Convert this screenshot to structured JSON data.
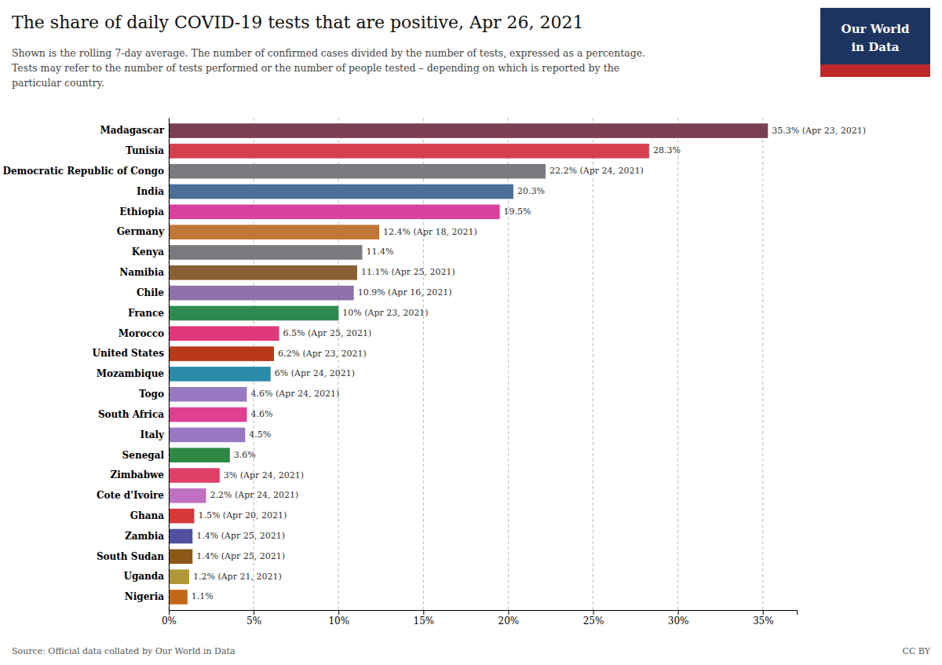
{
  "chart_data": {
    "type": "bar",
    "orientation": "horizontal",
    "title": "The share of daily COVID‑19 tests that are positive, Apr 26, 2021",
    "subtitle": [
      "Shown is the rolling 7-day average. The number of confirmed cases divided by the number of tests, expressed as a percentage.",
      "Tests may refer to the number of tests performed or the number of people tested – depending on which is reported by the",
      "particular country."
    ],
    "categories": [
      "Madagascar",
      "Tunisia",
      "Democratic Republic of Congo",
      "India",
      "Ethiopia",
      "Germany",
      "Kenya",
      "Namibia",
      "Chile",
      "France",
      "Morocco",
      "United States",
      "Mozambique",
      "Togo",
      "South Africa",
      "Italy",
      "Senegal",
      "Zimbabwe",
      "Cote d'Ivoire",
      "Ghana",
      "Zambia",
      "South Sudan",
      "Uganda",
      "Nigeria"
    ],
    "values": [
      35.3,
      28.3,
      22.2,
      20.3,
      19.5,
      12.4,
      11.4,
      11.1,
      10.9,
      10.0,
      6.5,
      6.2,
      6.0,
      4.6,
      4.6,
      4.5,
      3.6,
      3.0,
      2.2,
      1.5,
      1.4,
      1.4,
      1.2,
      1.1
    ],
    "data_labels": true,
    "value_labels": [
      "35.3% (Apr 23, 2021)",
      "28.3%",
      "22.2% (Apr 24, 2021)",
      "20.3%",
      "19.5%",
      "12.4% (Apr 18, 2021)",
      "11.4%",
      "11.1% (Apr 25, 2021)",
      "10.9% (Apr 16, 2021)",
      "10% (Apr 23, 2021)",
      "6.5% (Apr 25, 2021)",
      "6.2% (Apr 23, 2021)",
      "6% (Apr 24, 2021)",
      "4.6% (Apr 24, 2021)",
      "4.6%",
      "4.5%",
      "3.6%",
      "3% (Apr 24, 2021)",
      "2.2% (Apr 24, 2021)",
      "1.5% (Apr 20, 2021)",
      "1.4% (Apr 25, 2021)",
      "1.4% (Apr 25, 2021)",
      "1.2% (Apr 21, 2021)",
      "1.1%"
    ],
    "colors": [
      "#7A3F50",
      "#D44050",
      "#7A7A80",
      "#4A6F96",
      "#D940A0",
      "#C07838",
      "#7A7A80",
      "#8B6035",
      "#9070A8",
      "#2E8B50",
      "#E03878",
      "#B83818",
      "#2B8AA8",
      "#9878C0",
      "#E04090",
      "#9878C0",
      "#2E8845",
      "#E04068",
      "#C070C0",
      "#D83838",
      "#5050A0",
      "#8B5818",
      "#B09838",
      "#C06818"
    ],
    "xlim": [
      0,
      37
    ],
    "xticks": [
      {
        "value": 0,
        "label": "0%"
      },
      {
        "value": 5,
        "label": "5%"
      },
      {
        "value": 10,
        "label": "10%"
      },
      {
        "value": 15,
        "label": "15%"
      },
      {
        "value": 20,
        "label": "20%"
      },
      {
        "value": 25,
        "label": "25%"
      },
      {
        "value": 30,
        "label": "30%"
      },
      {
        "value": 35,
        "label": "35%"
      }
    ],
    "grid": true,
    "annotations": [
      "Source: Official data collated by Our World in Data",
      "CC BY"
    ],
    "logo": {
      "lines": [
        "Our World",
        "in Data"
      ],
      "colors": [
        "#1D3461",
        "#C0292B"
      ]
    }
  }
}
